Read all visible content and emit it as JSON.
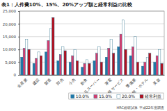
{
  "chart_data": {
    "type": "bar",
    "title": "表1：人件費10%、15%、20%アップ額と経常利益の比較",
    "categories": [
      "全産業",
      "建設",
      "製造",
      "卸売",
      "小売",
      "飲食",
      "食品スーパー",
      "家電",
      "情報サービス",
      "警備業",
      "旅館・ホテル",
      "美容"
    ],
    "series": [
      {
        "name": "10.0%",
        "color": "#1f78a8",
        "values": [
          7000,
          4500,
          9000,
          5500,
          5000,
          3000,
          5500,
          7000,
          11000,
          7500,
          3500,
          5000
        ]
      },
      {
        "name": "15.0%",
        "color": "#d23c6e",
        "values": [
          10500,
          6500,
          13500,
          8000,
          7500,
          4500,
          8500,
          10500,
          16000,
          11000,
          5000,
          7500
        ]
      },
      {
        "name": "20.0%",
        "color": "#ffffff",
        "values": [
          14000,
          9000,
          18000,
          11000,
          10000,
          6000,
          11000,
          14000,
          21500,
          15000,
          7000,
          10000
        ]
      },
      {
        "name": "経常利益",
        "color": "#b01020",
        "values": [
          10000,
          7500,
          22500,
          9500,
          5500,
          4500,
          5000,
          8500,
          10000,
          5000,
          8500,
          4500
        ]
      }
    ],
    "ylim": [
      0,
      25000
    ],
    "yticks": [
      0,
      {
        "value": 5000,
        "label": "5,000"
      },
      {
        "value": 10000,
        "label": "10,000"
      },
      {
        "value": 15000,
        "label": "15,000"
      },
      {
        "value": 20000,
        "label": "20,000"
      },
      {
        "value": 25000,
        "label": "25,000"
      }
    ],
    "grid": true,
    "legend": "bottom",
    "source": "HRC総研試算 平成22年度調査"
  }
}
